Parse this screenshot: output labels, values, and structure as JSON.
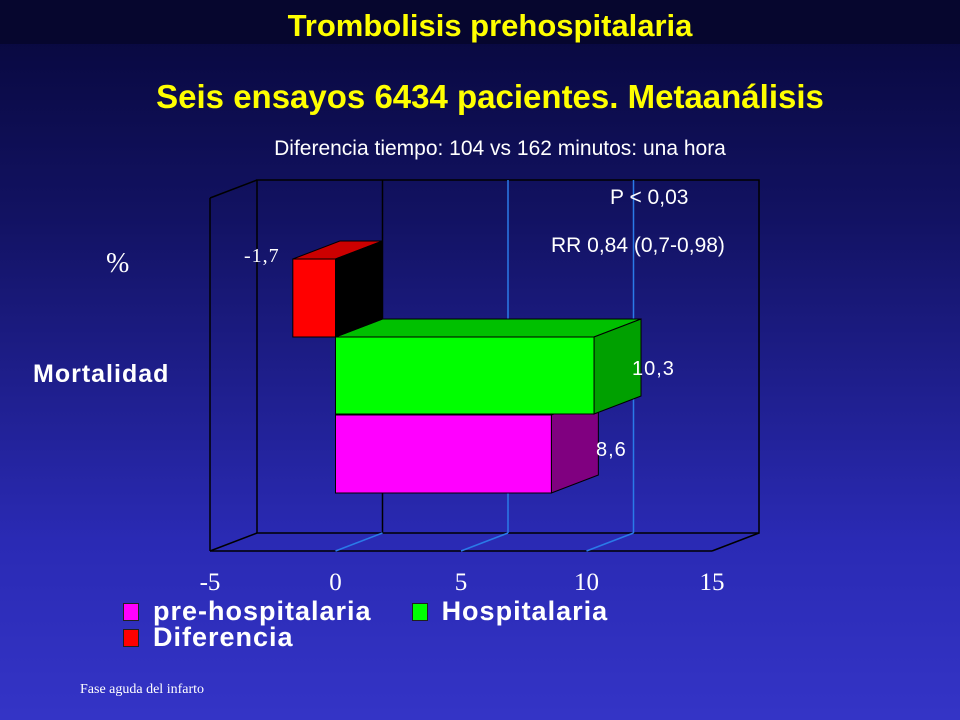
{
  "slide": {
    "title": "Trombolisis prehospitalaria",
    "subtitle": "Seis ensayos 6434 pacientes. Metaanálisis",
    "time_note": "Diferencia tiempo: 104 vs 162 minutos: una hora",
    "p_value": "P < 0,03",
    "rr": "RR 0,84 (0,7-0,98)",
    "footer": "Fase aguda del infarto"
  },
  "colors": {
    "pre_hospitalaria": "#ff00ff",
    "hospitalaria": "#00ff00",
    "diferencia": "#ff0000",
    "text_highlight": "#ffff00"
  },
  "chart_data": {
    "type": "bar",
    "orientation": "horizontal",
    "category_label": "Mortalidad",
    "unit_label": "%",
    "series": [
      {
        "name": "pre-hospitalaria",
        "value": 8.6,
        "label": "8,6"
      },
      {
        "name": "Hospitalaria",
        "value": 10.3,
        "label": "10,3"
      },
      {
        "name": "Diferencia",
        "value": -1.7,
        "label": "-1,7"
      }
    ],
    "xlim": [
      -5,
      15
    ],
    "xticks": [
      "-5",
      "0",
      "5",
      "10",
      "15"
    ],
    "grid": "vertical gridlines at 5 and 10",
    "legend_position": "bottom",
    "legend_rows": [
      [
        "pre-hospitalaria",
        "Hospitalaria"
      ],
      [
        "Diferencia"
      ]
    ]
  }
}
